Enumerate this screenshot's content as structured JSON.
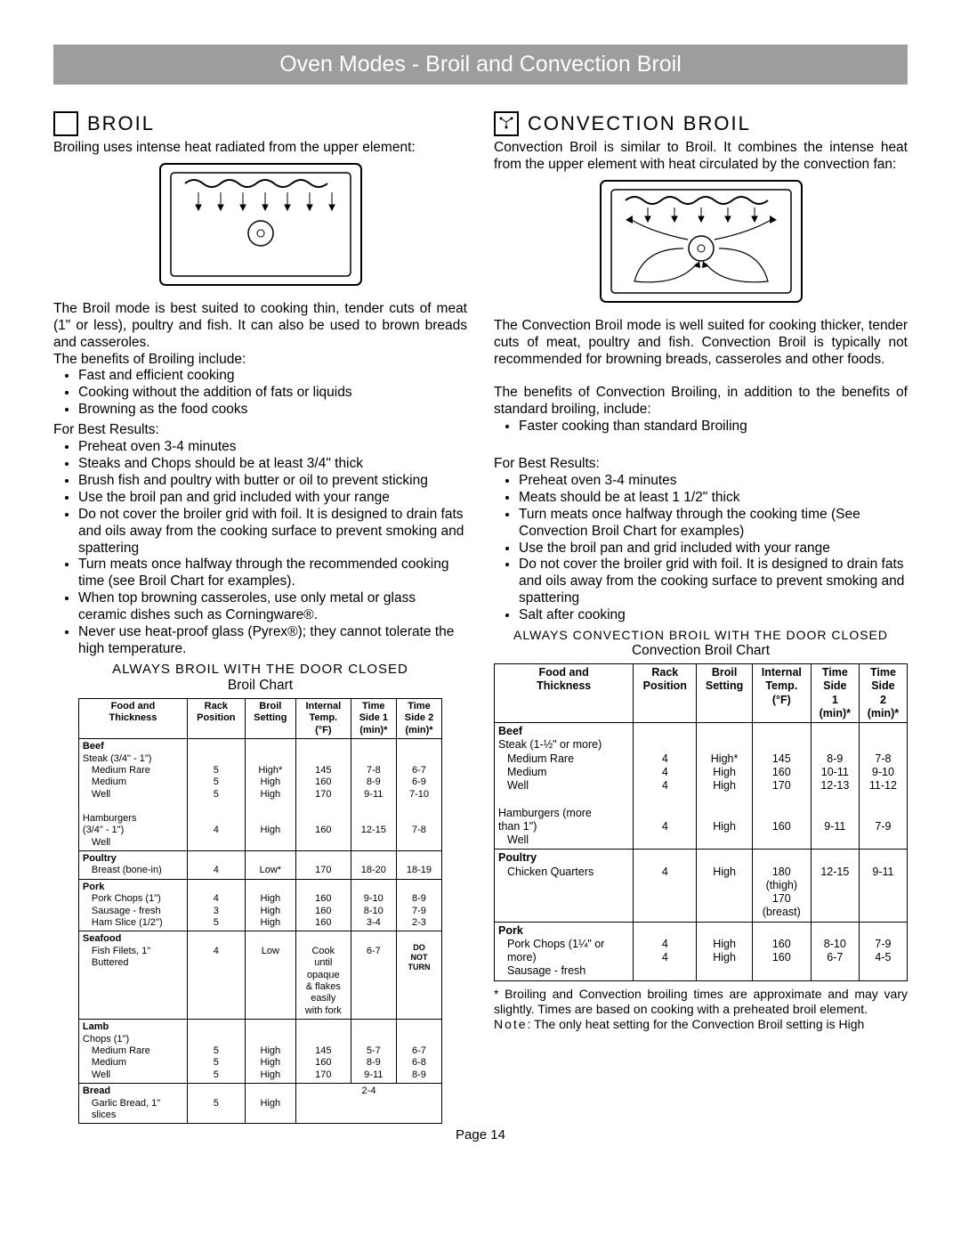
{
  "page_title": "Oven Modes - Broil and Convection Broil",
  "page_number": "Page 14",
  "broil": {
    "title": "BROIL",
    "intro": "Broiling uses intense heat radiated from the upper element:",
    "para1": "The Broil mode is best suited to cooking thin, tender cuts of meat (1\" or less), poultry and fish.  It can also be used to brown breads and casseroles.",
    "benefits_lead": "The benefits of Broiling include:",
    "benefits": [
      "Fast and efficient cooking",
      "Cooking without the addition of fats or liquids",
      "Browning as the food cooks"
    ],
    "best_lead": "For Best Results:",
    "best": [
      "Preheat oven 3-4 minutes",
      "Steaks and Chops should be at least 3/4\" thick",
      "Brush fish and poultry with butter or oil to prevent sticking",
      "Use the broil pan and grid included with your range",
      "Do not cover the broiler grid with foil.  It is designed to drain fats and oils away from the cooking surface to prevent smoking and spattering",
      "Turn meats once halfway through the recommended cooking time (see Broil Chart for examples).",
      "When top browning casseroles, use only metal or glass ceramic dishes such as Corningware®.",
      "Never use heat-proof glass (Pyrex®); they cannot tolerate the high temperature."
    ],
    "always": "ALWAYS BROIL WITH THE DOOR CLOSED",
    "chart_title": "Broil Chart",
    "chart": {
      "headers": [
        "Food and\nThickness",
        "Rack\nPosition",
        "Broil\nSetting",
        "Internal\nTemp.\n(°F)",
        "Time\nSide 1\n(min)*",
        "Time\nSide 2\n(min)*"
      ],
      "rows": [
        {
          "cat": "Beef",
          "food": "Steak (3/4\" - 1\")",
          "sub": [
            [
              "Medium Rare",
              "5",
              "High*",
              "145",
              "7-8",
              "6-7"
            ],
            [
              "Medium",
              "5",
              "High",
              "160",
              "8-9",
              "6-9"
            ],
            [
              "Well",
              "5",
              "High",
              "170",
              "9-11",
              "7-10"
            ]
          ],
          "extra_food": "Hamburgers\n(3/4\" - 1\")",
          "extra_sub": [
            [
              "Well",
              "4",
              "High",
              "160",
              "12-15",
              "7-8"
            ]
          ]
        },
        {
          "cat": "Poultry",
          "sub": [
            [
              "Breast (bone-in)",
              "4",
              "Low*",
              "170",
              "18-20",
              "18-19"
            ]
          ]
        },
        {
          "cat": "Pork",
          "sub": [
            [
              "Pork Chops (1\")",
              "4",
              "High",
              "160",
              "9-10",
              "8-9"
            ],
            [
              "Sausage - fresh",
              "3",
              "High",
              "160",
              "8-10",
              "7-9"
            ],
            [
              "Ham Slice (1/2\")",
              "5",
              "High",
              "160",
              "3-4",
              "2-3"
            ]
          ]
        },
        {
          "cat": "Seafood",
          "sub": [
            [
              "Fish Filets, 1\"\nButtered",
              "4",
              "Low",
              "Cook\nuntil\nopaque\n& flakes\neasily\nwith fork",
              "6-7",
              "DO\nNOT\nTURN"
            ]
          ]
        },
        {
          "cat": "Lamb",
          "food": "Chops (1\")",
          "sub": [
            [
              "Medium Rare",
              "5",
              "High",
              "145",
              "5-7",
              "6-7"
            ],
            [
              "Medium",
              "5",
              "High",
              "160",
              "8-9",
              "6-8"
            ],
            [
              "Well",
              "5",
              "High",
              "170",
              "9-11",
              "8-9"
            ]
          ]
        },
        {
          "cat": "Bread",
          "sub": [
            [
              "Garlic Bread, 1\"\nslices",
              "5",
              "High",
              "__MERGE__",
              "2-4",
              ""
            ]
          ]
        }
      ]
    }
  },
  "conv": {
    "title": "CONVECTION BROIL",
    "intro": "Convection Broil is similar to Broil.  It combines the intense heat from the upper element with heat circulated by the convection fan:",
    "para1": "The Convection Broil mode is well suited for cooking thicker, tender cuts of meat, poultry and fish.  Convection Broil is typically not recommended for browning breads, casseroles and other foods.",
    "benefits_lead": "The benefits of Convection Broiling, in addition to the benefits of standard broiling, include:",
    "benefits": [
      "Faster cooking than standard Broiling"
    ],
    "best_lead": "For Best Results:",
    "best": [
      "Preheat oven 3-4 minutes",
      "Meats should be at least 1 1/2\" thick",
      "Turn meats once halfway through the cooking time (See Convection Broil Chart for examples)",
      "Use the broil pan and grid included with your range",
      "Do not cover the broiler grid with foil.  It is designed to drain fats and oils away from the cooking surface to prevent smoking and spattering",
      "Salt after cooking"
    ],
    "always": "ALWAYS CONVECTION BROIL WITH THE DOOR CLOSED",
    "chart_title": "Convection Broil Chart",
    "chart": {
      "headers": [
        "Food and\nThickness",
        "Rack\nPosition",
        "Broil\nSetting",
        "Internal\nTemp.\n(°F)",
        "Time\nSide\n1\n(min)*",
        "Time\nSide\n2\n(min)*"
      ],
      "rows": [
        {
          "cat": "Beef",
          "food": "Steak (1-½\" or more)",
          "sub": [
            [
              "Medium Rare",
              "4",
              "High*",
              "145",
              "8-9",
              "7-8"
            ],
            [
              "Medium",
              "4",
              "High",
              "160",
              "10-11",
              "9-10"
            ],
            [
              "Well",
              "4",
              "High",
              "170",
              "12-13",
              "11-12"
            ]
          ],
          "extra_food": "Hamburgers (more\nthan 1\")",
          "extra_sub": [
            [
              "Well",
              "4",
              "High",
              "160",
              "9-11",
              "7-9"
            ]
          ]
        },
        {
          "cat": "Poultry",
          "sub": [
            [
              "Chicken Quarters",
              "4",
              "High",
              "180\n(thigh)\n170\n(breast)",
              "12-15",
              "9-11"
            ]
          ]
        },
        {
          "cat": "Pork",
          "sub": [
            [
              "Pork Chops (1¼\" or\nmore)",
              "4",
              "High",
              "160",
              "8-10",
              "7-9"
            ],
            [
              "Sausage - fresh",
              "4",
              "High",
              "160",
              "6-7",
              "4-5"
            ]
          ]
        }
      ]
    },
    "footnote": "* Broiling and Convection broiling times are approximate and may vary slightly. Times are based on cooking with a preheated broil element.",
    "note": "Note: The only heat setting for the Convection Broil setting is High"
  }
}
